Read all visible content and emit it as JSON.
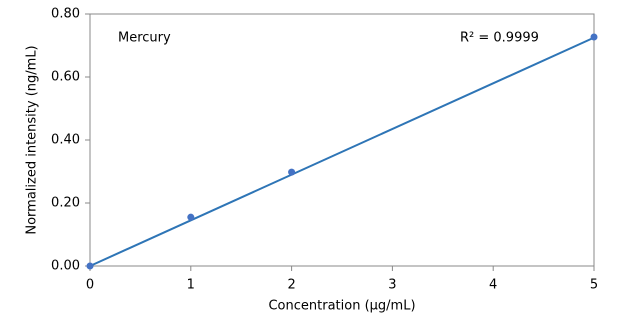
{
  "chart_data": {
    "type": "scatter",
    "x_label": "Concentration (µg/mL)",
    "y_label": "Normalized intensity (ng/mL)",
    "annotations": [
      "Mercury",
      "R² = 0.9999"
    ],
    "series": [
      {
        "color": "#4472c4",
        "x": [
          0,
          1,
          2,
          5
        ],
        "values": [
          0.0,
          0.155,
          0.298,
          0.727
        ]
      }
    ],
    "trendline": {
      "color": "#2e75b6",
      "x": [
        0,
        5
      ],
      "values": [
        0.0,
        0.725
      ]
    },
    "xlim": [
      0,
      5
    ],
    "xticks": [
      0,
      1,
      2,
      3,
      4,
      5
    ],
    "ylim": [
      0,
      0.8
    ],
    "yticks": [
      {
        "value": 0,
        "label": "0.00"
      },
      {
        "value": 0.2,
        "label": "0.20"
      },
      {
        "value": 0.4,
        "label": "0.40"
      },
      {
        "value": 0.6,
        "label": "0.60"
      },
      {
        "value": 0.8,
        "label": "0.80"
      }
    ]
  }
}
